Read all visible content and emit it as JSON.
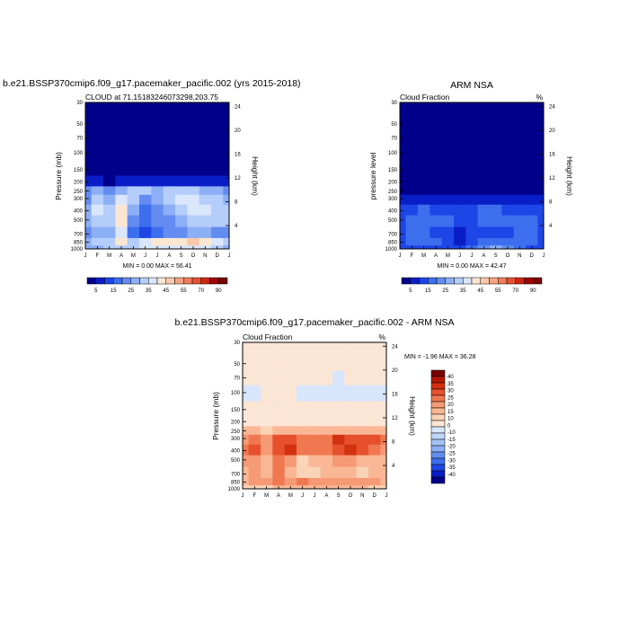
{
  "figure": {
    "panel1_title": "b.e21.BSSP370cmip6.f09_g17.pacemaker_pacific.002 (yrs 2015-2018)",
    "panel2_title": "ARM NSA",
    "panel3_title": "b.e21.BSSP370cmip6.f09_g17.pacemaker_pacific.002 - ARM NSA"
  },
  "colors": {
    "abs_palette": [
      "#00008b",
      "#0a1ec8",
      "#1e46e6",
      "#3c6eee",
      "#648cf0",
      "#8caff5",
      "#b4cdfa",
      "#dae6fc",
      "#fae6d2",
      "#fac8aa",
      "#f5a582",
      "#f07d5a",
      "#e65032",
      "#cd280f",
      "#a00000",
      "#780000"
    ],
    "diff_palette": [
      "#00008b",
      "#0a1ec8",
      "#1e46e6",
      "#3c6eee",
      "#648cf0",
      "#8caff5",
      "#a5c3f8",
      "#bed7fa",
      "#d7e6fc",
      "#fbe5d5",
      "#fbd4b8",
      "#f9b796",
      "#f59a74",
      "#f07850",
      "#e6502d",
      "#d2320f",
      "#b41900",
      "#780000"
    ]
  },
  "chart_data": [
    {
      "type": "heatmap",
      "title": "b.e21.BSSP370cmip6.f09_g17.pacemaker_pacific.002 (yrs 2015-2018)",
      "subtitle_left": "CLOUD at 71.15183246073298,203.75",
      "xlabel": "",
      "ylabel": "Pressure (mb)",
      "ylabel_right": "Height (km)",
      "x_ticks": [
        "J",
        "F",
        "M",
        "A",
        "M",
        "J",
        "J",
        "A",
        "S",
        "O",
        "N",
        "D",
        "J"
      ],
      "y_ticks": [
        "30",
        "50",
        "70",
        "100",
        "150",
        "200",
        "250",
        "300",
        "400",
        "500",
        "700",
        "850",
        "1000"
      ],
      "y_ticks_right": [
        "24",
        "20",
        "16",
        "12",
        "8",
        "4"
      ],
      "stats": "MIN =   0.00 MAX =  56.41",
      "colorbar_labels": [
        "5",
        "15",
        "25",
        "35",
        "45",
        "55",
        "70",
        "90"
      ],
      "scale": "log-pressure",
      "levels": [
        [
          0,
          0,
          0,
          0,
          0,
          0,
          0,
          0,
          0,
          0,
          0,
          0,
          0
        ],
        [
          0,
          0,
          0,
          0,
          0,
          0,
          0,
          0,
          0,
          0,
          0,
          0,
          0
        ],
        [
          0,
          0,
          0,
          0,
          0,
          0,
          0,
          0,
          0,
          0,
          0,
          0,
          0
        ],
        [
          0,
          0,
          0,
          0,
          0,
          0,
          0,
          0,
          0,
          0,
          0,
          0,
          0
        ],
        [
          0,
          0,
          0,
          0,
          0,
          0,
          0,
          0,
          0,
          0,
          0,
          0,
          0
        ],
        [
          1,
          1,
          0,
          1,
          1,
          1,
          1,
          1,
          1,
          1,
          1,
          1,
          1
        ],
        [
          4,
          5,
          4,
          5,
          6,
          6,
          5,
          6,
          6,
          6,
          5,
          5,
          4
        ],
        [
          4,
          6,
          5,
          7,
          6,
          4,
          5,
          6,
          7,
          7,
          6,
          6,
          5
        ],
        [
          5,
          7,
          6,
          8,
          5,
          3,
          4,
          5,
          6,
          7,
          7,
          6,
          6
        ],
        [
          5,
          6,
          6,
          8,
          4,
          3,
          4,
          4,
          5,
          6,
          6,
          6,
          6
        ],
        [
          4,
          5,
          5,
          7,
          3,
          2,
          3,
          4,
          4,
          5,
          5,
          4,
          4
        ],
        [
          5,
          6,
          6,
          8,
          6,
          7,
          8,
          8,
          8,
          9,
          8,
          7,
          6
        ],
        [
          5,
          5,
          6,
          6,
          6,
          7,
          7,
          7,
          7,
          7,
          7,
          6,
          5
        ]
      ]
    },
    {
      "type": "heatmap",
      "title": "ARM NSA",
      "subtitle_left": "Cloud Fraction",
      "subtitle_right": "%",
      "xlabel": "",
      "ylabel": "pressure level",
      "ylabel_right": "Height (km)",
      "x_ticks": [
        "J",
        "F",
        "M",
        "A",
        "M",
        "J",
        "J",
        "A",
        "S",
        "O",
        "N",
        "D",
        "J"
      ],
      "y_ticks": [
        "30",
        "50",
        "70",
        "100",
        "150",
        "200",
        "250",
        "300",
        "400",
        "500",
        "700",
        "850",
        "1000"
      ],
      "y_ticks_right": [
        "24",
        "20",
        "16",
        "12",
        "8",
        "4"
      ],
      "stats": "MIN =   0.00 MAX =  42.47",
      "colorbar_labels": [
        "5",
        "15",
        "25",
        "35",
        "45",
        "55",
        "70",
        "90"
      ],
      "scale": "log-pressure",
      "levels": [
        [
          0,
          0,
          0,
          0,
          0,
          0,
          0,
          0,
          0,
          0,
          0,
          0,
          0
        ],
        [
          0,
          0,
          0,
          0,
          0,
          0,
          0,
          0,
          0,
          0,
          0,
          0,
          0
        ],
        [
          0,
          0,
          0,
          0,
          0,
          0,
          0,
          0,
          0,
          0,
          0,
          0,
          0
        ],
        [
          0,
          0,
          0,
          0,
          0,
          0,
          0,
          0,
          0,
          0,
          0,
          0,
          0
        ],
        [
          0,
          0,
          0,
          0,
          0,
          0,
          0,
          0,
          0,
          0,
          0,
          0,
          0
        ],
        [
          0,
          0,
          0,
          0,
          0,
          0,
          0,
          0,
          0,
          0,
          0,
          0,
          0
        ],
        [
          0,
          0,
          0,
          0,
          0,
          0,
          0,
          0,
          0,
          0,
          0,
          0,
          0
        ],
        [
          1,
          1,
          1,
          1,
          1,
          1,
          1,
          1,
          1,
          1,
          1,
          1,
          1
        ],
        [
          2,
          2,
          3,
          2,
          2,
          2,
          2,
          3,
          3,
          2,
          2,
          2,
          2
        ],
        [
          2,
          3,
          3,
          3,
          3,
          2,
          2,
          3,
          3,
          3,
          3,
          3,
          2
        ],
        [
          2,
          3,
          3,
          2,
          2,
          1,
          2,
          2,
          2,
          2,
          3,
          3,
          2
        ],
        [
          2,
          3,
          3,
          3,
          2,
          1,
          2,
          3,
          3,
          3,
          3,
          3,
          2
        ],
        [
          2,
          2,
          2,
          2,
          2,
          2,
          3,
          4,
          5,
          4,
          3,
          2,
          2
        ]
      ]
    },
    {
      "type": "heatmap",
      "title": "b.e21.BSSP370cmip6.f09_g17.pacemaker_pacific.002 - ARM NSA",
      "subtitle_left": "Cloud Fraction",
      "subtitle_right": "%",
      "xlabel": "",
      "ylabel": "Pressure (mb)",
      "ylabel_right": "Height (km)",
      "x_ticks": [
        "J",
        "F",
        "M",
        "A",
        "M",
        "J",
        "J",
        "A",
        "S",
        "O",
        "N",
        "D",
        "J"
      ],
      "y_ticks": [
        "30",
        "50",
        "70",
        "100",
        "150",
        "200",
        "250",
        "300",
        "400",
        "500",
        "700",
        "850",
        "1000"
      ],
      "y_ticks_right": [
        "24",
        "20",
        "16",
        "12",
        "8",
        "4"
      ],
      "stats": "MIN =  -1.96 MAX =  36.28",
      "colorbar_labels": [
        "40",
        "35",
        "30",
        "25",
        "20",
        "15",
        "10",
        "0",
        "-10",
        "-15",
        "-20",
        "-25",
        "-30",
        "-35",
        "-40"
      ],
      "scale": "log-pressure",
      "levels": [
        [
          9,
          9,
          9,
          9,
          9,
          9,
          9,
          9,
          9,
          9,
          9,
          9,
          9
        ],
        [
          9,
          9,
          9,
          9,
          9,
          9,
          9,
          9,
          9,
          9,
          9,
          9,
          9
        ],
        [
          9,
          9,
          9,
          9,
          9,
          9,
          9,
          9,
          8,
          9,
          9,
          9,
          9
        ],
        [
          8,
          8,
          9,
          9,
          9,
          8,
          8,
          8,
          8,
          8,
          8,
          8,
          8
        ],
        [
          9,
          9,
          9,
          9,
          9,
          9,
          9,
          9,
          9,
          9,
          9,
          9,
          9
        ],
        [
          9,
          9,
          9,
          9,
          9,
          9,
          9,
          9,
          9,
          9,
          9,
          9,
          9
        ],
        [
          11,
          11,
          10,
          11,
          11,
          11,
          11,
          11,
          11,
          11,
          11,
          11,
          11
        ],
        [
          12,
          13,
          12,
          14,
          14,
          13,
          13,
          13,
          15,
          14,
          14,
          14,
          13
        ],
        [
          13,
          14,
          12,
          14,
          15,
          13,
          13,
          13,
          14,
          15,
          14,
          13,
          12
        ],
        [
          12,
          12,
          11,
          13,
          12,
          10,
          11,
          11,
          12,
          12,
          11,
          11,
          11
        ],
        [
          11,
          12,
          11,
          13,
          11,
          10,
          10,
          11,
          11,
          11,
          10,
          11,
          11
        ],
        [
          11,
          12,
          12,
          13,
          12,
          13,
          12,
          12,
          12,
          12,
          12,
          12,
          11
        ],
        [
          10,
          10,
          10,
          11,
          11,
          11,
          11,
          11,
          11,
          11,
          11,
          10,
          10
        ]
      ]
    }
  ]
}
